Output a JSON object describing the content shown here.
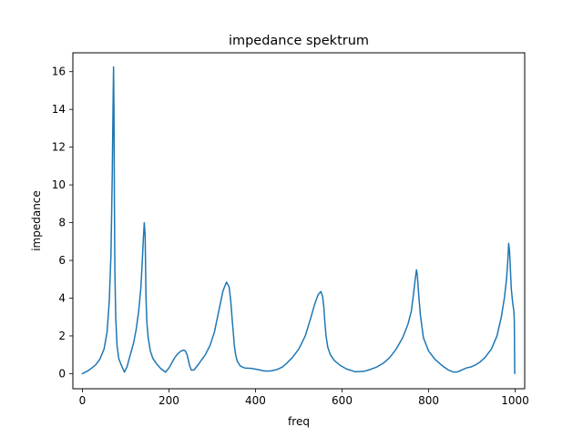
{
  "chart_data": {
    "type": "line",
    "title": "impedance spektrum",
    "xlabel": "freq",
    "ylabel": "impedance",
    "xlim": [
      -22,
      1022
    ],
    "ylim": [
      -0.8,
      17.0
    ],
    "xticks": [
      0,
      200,
      400,
      600,
      800,
      1000
    ],
    "yticks": [
      0,
      2,
      4,
      6,
      8,
      10,
      12,
      14,
      16
    ],
    "grid": false,
    "legend": "none",
    "series": [
      {
        "color": "#1f77b4",
        "x": [
          0,
          15,
          30,
          40,
          50,
          57,
          62,
          66,
          69,
          71,
          72,
          73,
          74,
          75,
          77,
          80,
          84,
          90,
          97,
          103,
          107,
          112,
          118,
          124,
          130,
          135,
          138,
          141,
          143,
          145,
          146,
          147,
          149,
          152,
          157,
          163,
          172,
          182,
          192,
          200,
          206,
          212,
          220,
          228,
          234,
          238,
          242,
          245,
          248,
          252,
          258,
          265,
          270,
          276,
          284,
          295,
          305,
          315,
          325,
          333,
          339,
          343,
          346,
          349,
          351,
          354,
          358,
          365,
          375,
          390,
          405,
          420,
          435,
          450,
          462,
          472,
          485,
          500,
          515,
          527,
          537,
          545,
          551,
          555,
          558,
          560,
          563,
          567,
          573,
          582,
          595,
          610,
          630,
          650,
          665,
          680,
          695,
          710,
          725,
          740,
          752,
          760,
          765,
          769,
          772,
          774,
          777,
          781,
          788,
          800,
          815,
          830,
          845,
          858,
          868,
          877,
          887,
          897,
          907,
          918,
          930,
          945,
          958,
          968,
          975,
          980,
          983,
          985,
          987,
          989,
          991,
          994,
          997,
          998,
          999
        ],
        "y": [
          0.0,
          0.18,
          0.45,
          0.75,
          1.3,
          2.2,
          3.8,
          6.3,
          10.5,
          14.5,
          16.25,
          14.0,
          9.0,
          5.5,
          3.0,
          1.5,
          0.8,
          0.45,
          0.08,
          0.35,
          0.7,
          1.1,
          1.6,
          2.3,
          3.3,
          4.5,
          5.8,
          7.2,
          8.0,
          7.3,
          5.6,
          4.0,
          2.7,
          1.9,
          1.2,
          0.8,
          0.5,
          0.25,
          0.08,
          0.3,
          0.55,
          0.8,
          1.05,
          1.2,
          1.25,
          1.2,
          1.0,
          0.7,
          0.4,
          0.18,
          0.2,
          0.4,
          0.55,
          0.75,
          1.0,
          1.5,
          2.2,
          3.3,
          4.4,
          4.85,
          4.6,
          3.8,
          2.9,
          2.1,
          1.5,
          1.0,
          0.65,
          0.4,
          0.3,
          0.28,
          0.22,
          0.14,
          0.14,
          0.22,
          0.35,
          0.55,
          0.85,
          1.3,
          2.0,
          2.9,
          3.7,
          4.2,
          4.35,
          4.1,
          3.5,
          2.8,
          2.0,
          1.4,
          1.0,
          0.7,
          0.45,
          0.25,
          0.1,
          0.12,
          0.22,
          0.35,
          0.55,
          0.85,
          1.3,
          1.9,
          2.6,
          3.3,
          4.2,
          5.0,
          5.5,
          5.2,
          4.2,
          3.1,
          1.9,
          1.2,
          0.75,
          0.45,
          0.2,
          0.08,
          0.1,
          0.2,
          0.3,
          0.35,
          0.45,
          0.6,
          0.85,
          1.3,
          2.0,
          3.0,
          4.0,
          5.0,
          6.0,
          6.9,
          6.5,
          5.5,
          4.5,
          3.8,
          3.3,
          2.8,
          0.0
        ]
      }
    ]
  }
}
